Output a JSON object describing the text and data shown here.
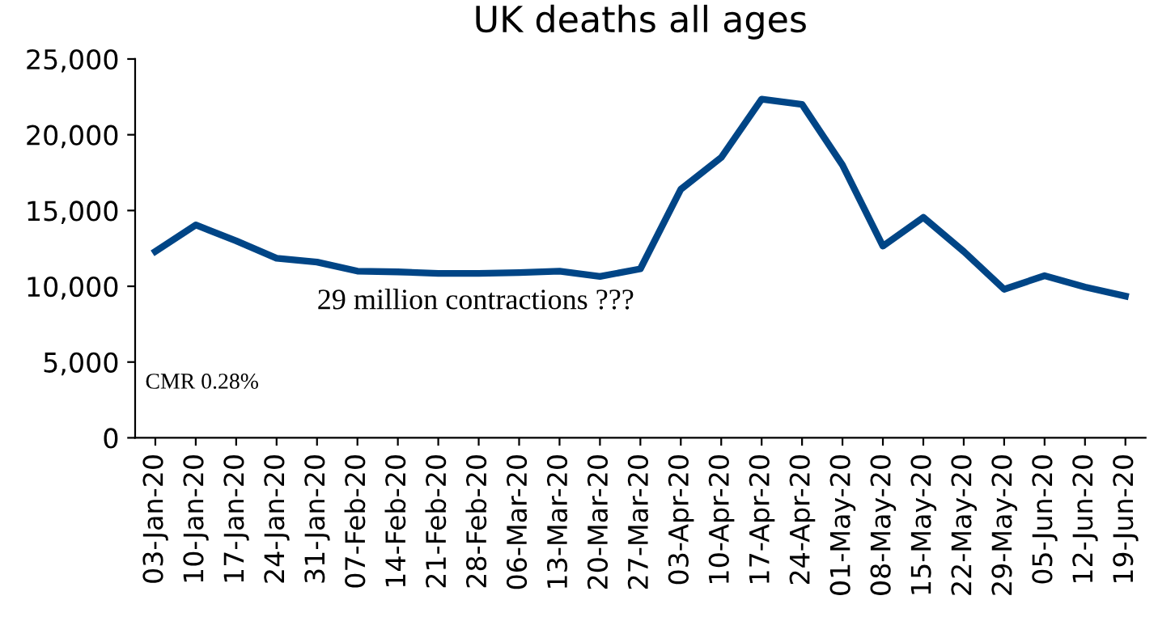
{
  "chart_data": {
    "type": "line",
    "title": "UK deaths all ages",
    "categories": [
      "03-Jan-20",
      "10-Jan-20",
      "17-Jan-20",
      "24-Jan-20",
      "31-Jan-20",
      "07-Feb-20",
      "14-Feb-20",
      "21-Feb-20",
      "28-Feb-20",
      "06-Mar-20",
      "13-Mar-20",
      "20-Mar-20",
      "27-Mar-20",
      "03-Apr-20",
      "10-Apr-20",
      "17-Apr-20",
      "24-Apr-20",
      "01-May-20",
      "08-May-20",
      "15-May-20",
      "22-May-20",
      "29-May-20",
      "05-Jun-20",
      "12-Jun-20",
      "19-Jun-20"
    ],
    "series": [
      {
        "color": "#004586",
        "values": [
          12300,
          14050,
          13000,
          11850,
          11600,
          11000,
          10950,
          10850,
          10850,
          10900,
          11000,
          10650,
          11150,
          16400,
          18500,
          22350,
          22000,
          18000,
          12650,
          14550,
          12300,
          9800,
          10700,
          9950,
          9350
        ]
      }
    ],
    "ylim": [
      0,
      25000
    ],
    "yticks": [
      {
        "value": 0,
        "label": "0"
      },
      {
        "value": 5000,
        "label": "5,000"
      },
      {
        "value": 10000,
        "label": "10,000"
      },
      {
        "value": 15000,
        "label": "15,000"
      },
      {
        "value": 20000,
        "label": "20,000"
      },
      {
        "value": 25000,
        "label": "25,000"
      }
    ],
    "annotations": [
      "29 million contractions ???",
      "CMR 0.28%"
    ],
    "grid": false,
    "legend": false,
    "marker": "none",
    "line_style": "solid"
  }
}
